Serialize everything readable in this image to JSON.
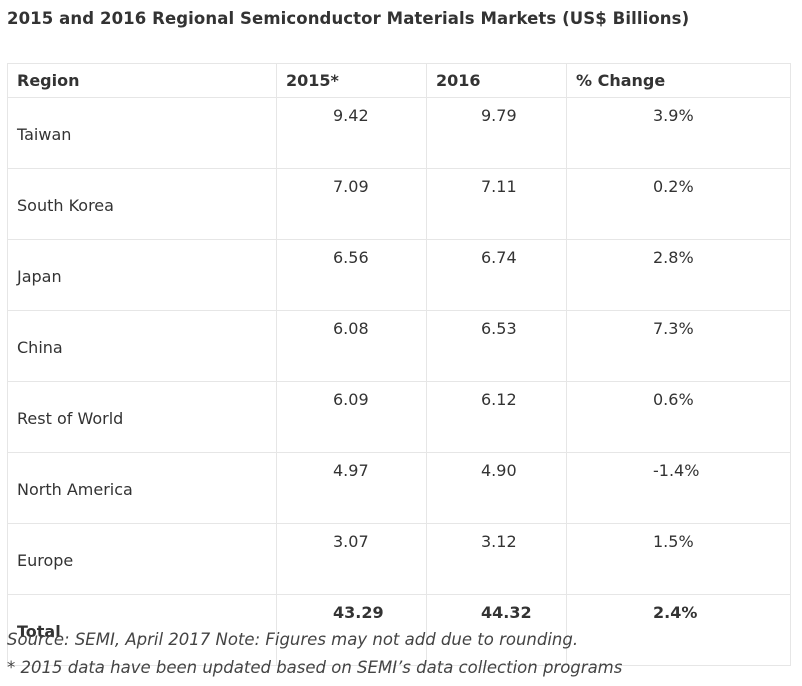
{
  "title": "2015 and 2016 Regional Semiconductor Materials Markets (US$ Billions)",
  "table": {
    "headers": [
      "Region",
      "2015*",
      "2016",
      "% Change"
    ],
    "rows": [
      [
        "Taiwan",
        "9.42",
        "9.79",
        "3.9%"
      ],
      [
        "South Korea",
        "7.09",
        "7.11",
        "0.2%"
      ],
      [
        "Japan",
        "6.56",
        "6.74",
        "2.8%"
      ],
      [
        "China",
        "6.08",
        "6.53",
        "7.3%"
      ],
      [
        "Rest of World",
        "6.09",
        "6.12",
        "0.6%"
      ],
      [
        "North America",
        "4.97",
        "4.90",
        "-1.4%"
      ],
      [
        "Europe",
        "3.07",
        "3.12",
        "1.5%"
      ]
    ],
    "total": [
      "Total",
      "43.29",
      "44.32",
      "2.4%"
    ]
  },
  "notes": {
    "source": "Source: SEMI, April 2017 Note: Figures may not add due to rounding.",
    "footnote": "* 2015 data have been updated based on SEMI’s data collection programs"
  }
}
